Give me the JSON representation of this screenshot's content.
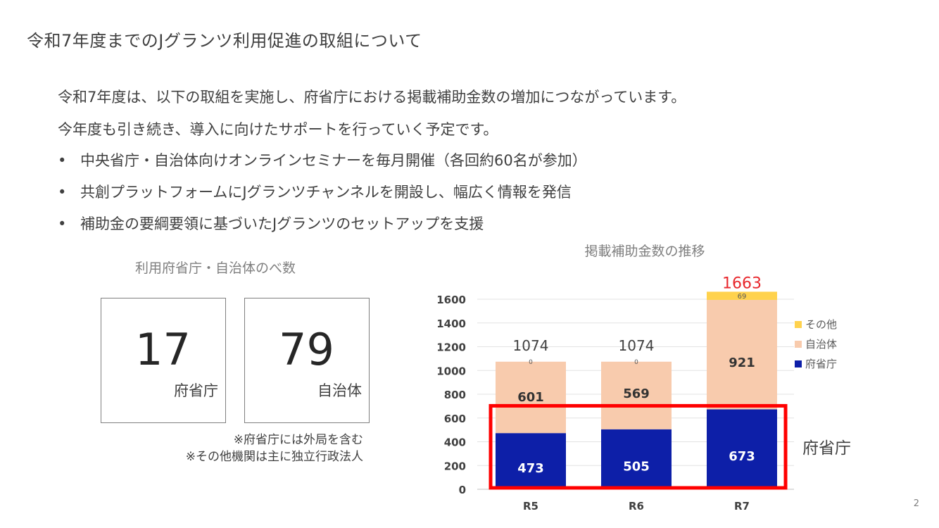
{
  "slide": {
    "title": "令和7年度までのJグランツ利用促進の取組について",
    "intro_lines": [
      "令和7年度は、以下の取組を実施し、府省庁における掲載補助金数の増加につながっています。",
      "今年度も引き続き、導入に向けたサポートを行っていく予定です。"
    ],
    "bullets": [
      "中央省庁・自治体向けオンラインセミナーを毎月開催（各回約60名が参加）",
      "共創プラットフォームにJグランツチャンネルを開設し、幅広く情報を発信",
      "補助金の要綱要領に基づいたJグランツのセットアップを支援"
    ],
    "bullet_symbol": "•",
    "page_number": "2"
  },
  "stats": {
    "caption": "利用府省庁・自治体のべ数",
    "boxes": [
      {
        "value": "17",
        "label": "府省庁"
      },
      {
        "value": "79",
        "label": "自治体"
      }
    ],
    "notes": [
      "※府省庁には外局を含む",
      "※その他機関は主に独立行政法人"
    ]
  },
  "chart_data": {
    "type": "bar",
    "stacked": true,
    "title": "掲載補助金数の推移",
    "categories": [
      "R5",
      "R6",
      "R7"
    ],
    "series": [
      {
        "name": "府省庁",
        "values": [
          473,
          505,
          673
        ],
        "color": "#0d1fa8"
      },
      {
        "name": "自治体",
        "values": [
          601,
          569,
          921
        ],
        "color": "#f8cbad"
      },
      {
        "name": "その他",
        "values": [
          0,
          0,
          69
        ],
        "color": "#ffd24d"
      }
    ],
    "totals": [
      1074,
      1074,
      1663
    ],
    "total_label_colors": [
      "#404040",
      "#404040",
      "#e8282d"
    ],
    "ylim": [
      0,
      1600
    ],
    "yticks": [
      0,
      200,
      400,
      600,
      800,
      1000,
      1200,
      1400,
      1600
    ],
    "grid": true,
    "legend_position": "right",
    "legend_order": [
      "その他",
      "自治体",
      "府省庁"
    ],
    "highlight": {
      "series": "府省庁",
      "label": "府省庁",
      "color": "#ff0000"
    }
  }
}
